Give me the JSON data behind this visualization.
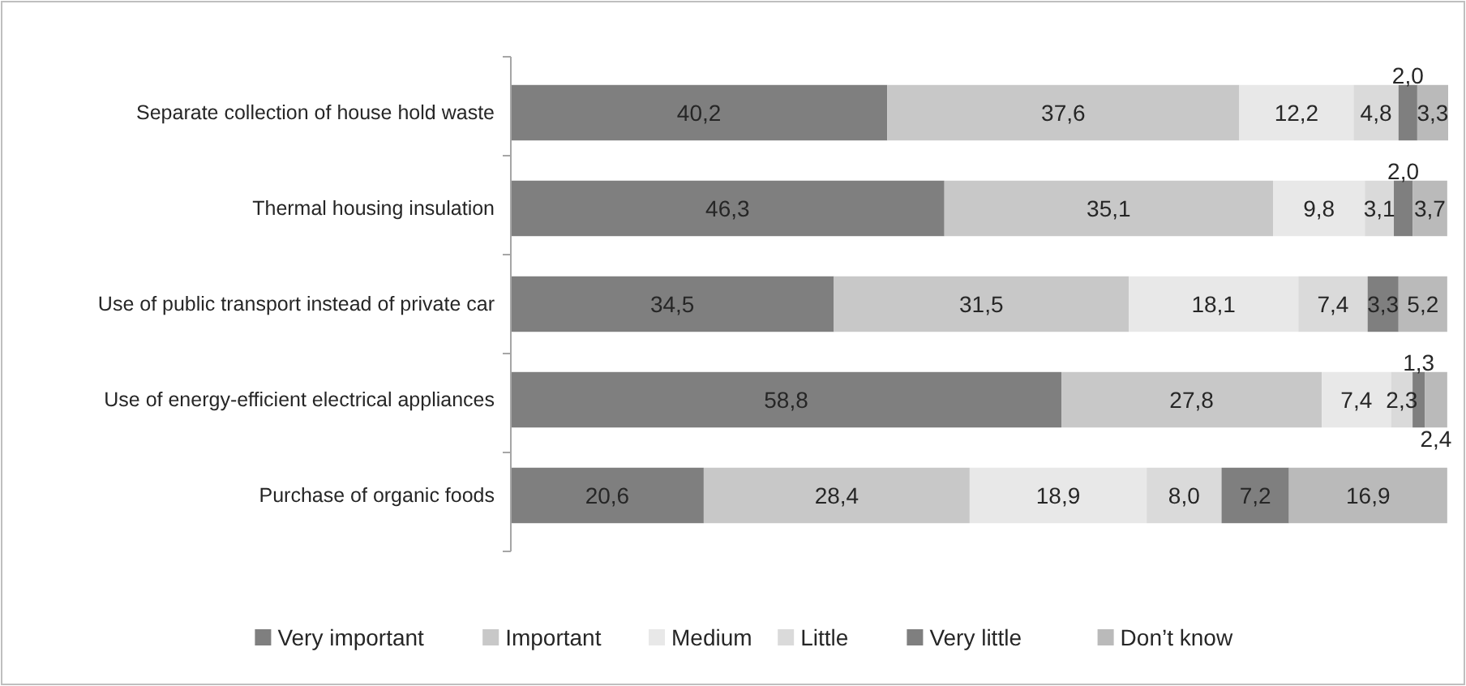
{
  "chart_data": {
    "type": "bar",
    "orientation": "horizontal",
    "stacked": true,
    "legend": "bottom",
    "categories": [
      "Separate collection of house hold waste",
      "Thermal housing insulation",
      "Use of public transport instead of private car",
      "Use of energy-efficient electrical appliances",
      "Purchase of organic foods"
    ],
    "series": [
      {
        "name": "Very important",
        "color": "#7f7f7f",
        "values": [
          40.2,
          46.3,
          34.5,
          58.8,
          20.6
        ],
        "value_labels": [
          "40,2",
          "46,3",
          "34,5",
          "58,8",
          "20,6"
        ]
      },
      {
        "name": "Important",
        "color": "#c8c8c8",
        "values": [
          37.6,
          35.1,
          31.5,
          27.8,
          28.4
        ],
        "value_labels": [
          "37,6",
          "35,1",
          "31,5",
          "27,8",
          "28,4"
        ]
      },
      {
        "name": "Medium",
        "color": "#e8e8e8",
        "values": [
          12.2,
          9.8,
          18.1,
          7.4,
          18.9
        ],
        "value_labels": [
          "12,2",
          "9,8",
          "18,1",
          "7,4",
          "18,9"
        ]
      },
      {
        "name": "Little",
        "color": "#dadada",
        "values": [
          4.8,
          3.1,
          7.4,
          2.3,
          8.0
        ],
        "value_labels": [
          "4,8",
          "3,1",
          "7,4",
          "2,3",
          "8,0"
        ]
      },
      {
        "name": "Very little",
        "color": "#7f7f7f",
        "values": [
          2.0,
          2.0,
          3.3,
          1.3,
          7.2
        ],
        "value_labels": [
          "2,0",
          "2,0",
          "3,3",
          "1,3",
          "7,2"
        ]
      },
      {
        "name": "Don’t know",
        "color": "#bababa",
        "values": [
          3.3,
          3.7,
          5.2,
          2.4,
          16.9
        ],
        "value_labels": [
          "3,3",
          "3,7",
          "5,2",
          "2,4",
          "16,9"
        ]
      }
    ]
  }
}
